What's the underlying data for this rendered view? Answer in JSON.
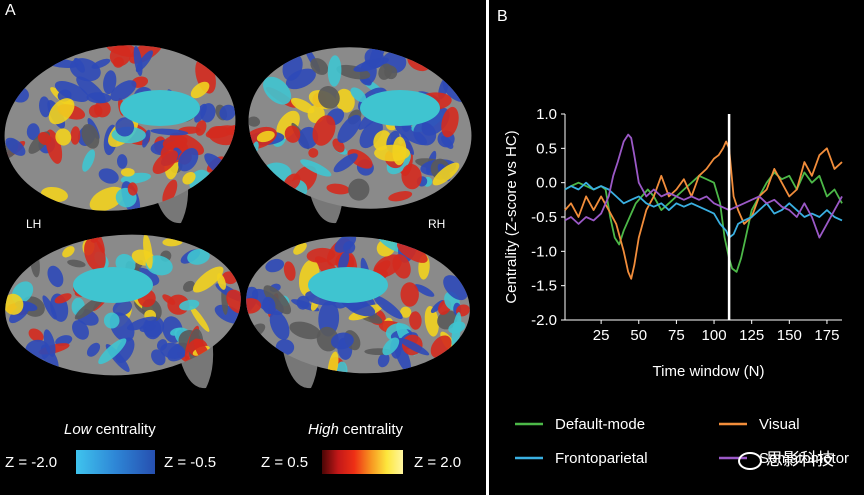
{
  "panel_a": {
    "letter": "A",
    "hemispheres": {
      "left": "LH",
      "right": "RH"
    },
    "low": {
      "title_italic": "Low",
      "title_rest": " centrality",
      "min_label": "Z = -2.0",
      "max_label": "Z = -0.5",
      "gradient": [
        "#3fc4ee",
        "#2e86d6",
        "#264fb0"
      ]
    },
    "high": {
      "title_italic": "High",
      "title_rest": " centrality",
      "min_label": "Z = 0.5",
      "max_label": "Z = 2.0",
      "gradient": [
        "#4a0505",
        "#c31818",
        "#ee3015",
        "#f79320",
        "#fde63c",
        "#fff7a0"
      ]
    },
    "colors": {
      "cortex": "#8a8a8a",
      "cyan": "#3fc4d0",
      "blue": "#2d49b8",
      "red": "#d42a1e",
      "yellow": "#f2d21e"
    }
  },
  "panel_b": {
    "letter": "B"
  },
  "chart_data": {
    "type": "line",
    "xlabel": "Time window (N)",
    "ylabel": "Centrality (Z-score vs HC)",
    "xlim": [
      1,
      185
    ],
    "ylim": [
      -2.0,
      1.0
    ],
    "xticks": [
      25,
      50,
      75,
      100,
      125,
      150,
      175
    ],
    "yticks": [
      "1.0",
      "0.5",
      "0.0",
      "-0.5",
      "-1.0",
      "-1.5",
      "-2.0"
    ],
    "marker_x": 110,
    "marker_color": "#ffffff",
    "grid": false,
    "legend_position": "bottom",
    "series": [
      {
        "name": "Default-mode",
        "color": "#4cb848",
        "x": [
          1,
          5,
          10,
          15,
          20,
          25,
          28,
          31,
          34,
          37,
          40,
          44,
          48,
          52,
          56,
          60,
          65,
          70,
          75,
          80,
          85,
          90,
          95,
          100,
          104,
          107,
          110,
          112,
          115,
          118,
          121,
          125,
          130,
          135,
          140,
          145,
          150,
          155,
          160,
          165,
          170,
          175,
          180,
          185
        ],
        "y": [
          -0.1,
          -0.05,
          0.0,
          -0.05,
          -0.1,
          -0.05,
          -0.1,
          -0.5,
          -0.8,
          -0.9,
          -0.7,
          -0.5,
          -0.3,
          -0.2,
          -0.1,
          -0.2,
          -0.4,
          -0.3,
          -0.2,
          -0.1,
          0.0,
          0.1,
          0.05,
          0.0,
          -0.3,
          -0.8,
          -1.1,
          -1.25,
          -1.3,
          -1.1,
          -0.8,
          -0.4,
          -0.2,
          0.0,
          0.15,
          0.05,
          0.1,
          -0.1,
          0.15,
          0.0,
          0.1,
          -0.2,
          -0.1,
          -0.3
        ]
      },
      {
        "name": "Visual",
        "color": "#f28d3b",
        "x": [
          1,
          5,
          10,
          15,
          20,
          25,
          30,
          35,
          40,
          43,
          45,
          47,
          50,
          55,
          60,
          65,
          70,
          75,
          80,
          85,
          90,
          95,
          100,
          103,
          106,
          108,
          110,
          113,
          116,
          120,
          125,
          130,
          135,
          140,
          145,
          150,
          155,
          160,
          165,
          170,
          175,
          180,
          185
        ],
        "y": [
          -0.4,
          -0.3,
          -0.5,
          -0.2,
          -0.4,
          -0.2,
          -0.4,
          -0.6,
          -1.0,
          -1.3,
          -1.4,
          -1.2,
          -0.8,
          -0.4,
          -0.2,
          0.1,
          -0.2,
          -0.1,
          0.05,
          -0.2,
          0.1,
          0.2,
          0.35,
          0.4,
          0.5,
          0.6,
          0.5,
          -0.2,
          -0.4,
          -0.6,
          -0.5,
          -0.2,
          -0.1,
          0.2,
          0.0,
          -0.2,
          -0.1,
          0.3,
          0.1,
          0.4,
          0.5,
          0.2,
          0.3
        ]
      },
      {
        "name": "Frontoparietal",
        "color": "#3ab0e2",
        "x": [
          1,
          5,
          10,
          15,
          20,
          25,
          30,
          35,
          40,
          45,
          50,
          55,
          60,
          65,
          70,
          75,
          80,
          85,
          90,
          95,
          100,
          104,
          108,
          110,
          113,
          116,
          120,
          125,
          130,
          135,
          140,
          145,
          150,
          155,
          160,
          165,
          170,
          175,
          180,
          185
        ],
        "y": [
          -0.1,
          -0.05,
          -0.1,
          0.0,
          -0.1,
          -0.05,
          -0.1,
          -0.2,
          -0.3,
          -0.25,
          -0.2,
          -0.3,
          -0.35,
          -0.3,
          -0.4,
          -0.3,
          -0.35,
          -0.3,
          -0.35,
          -0.4,
          -0.45,
          -0.6,
          -0.7,
          -0.8,
          -0.75,
          -0.6,
          -0.55,
          -0.5,
          -0.4,
          -0.3,
          -0.45,
          -0.4,
          -0.3,
          -0.4,
          -0.5,
          -0.45,
          -0.5,
          -0.4,
          -0.5,
          -0.55
        ]
      },
      {
        "name": "Somatomotor",
        "color": "#9b59c7",
        "x": [
          1,
          5,
          10,
          15,
          20,
          25,
          30,
          33,
          36,
          40,
          43,
          45,
          47,
          50,
          55,
          60,
          65,
          70,
          75,
          80,
          85,
          90,
          95,
          100,
          105,
          110,
          115,
          120,
          125,
          130,
          135,
          140,
          145,
          150,
          155,
          160,
          165,
          170,
          175,
          180,
          185
        ],
        "y": [
          -0.55,
          -0.5,
          -0.6,
          -0.5,
          -0.55,
          -0.45,
          -0.2,
          0.1,
          0.3,
          0.6,
          0.7,
          0.65,
          0.4,
          0.0,
          -0.2,
          -0.1,
          -0.2,
          -0.15,
          -0.2,
          -0.25,
          -0.2,
          -0.25,
          -0.2,
          -0.3,
          -0.35,
          -0.4,
          -0.35,
          -0.3,
          -0.25,
          -0.2,
          -0.3,
          -0.25,
          -0.35,
          -0.4,
          -0.5,
          -0.3,
          -0.5,
          -0.8,
          -0.6,
          -0.4,
          -0.2
        ]
      }
    ]
  },
  "watermark": "思影科技"
}
